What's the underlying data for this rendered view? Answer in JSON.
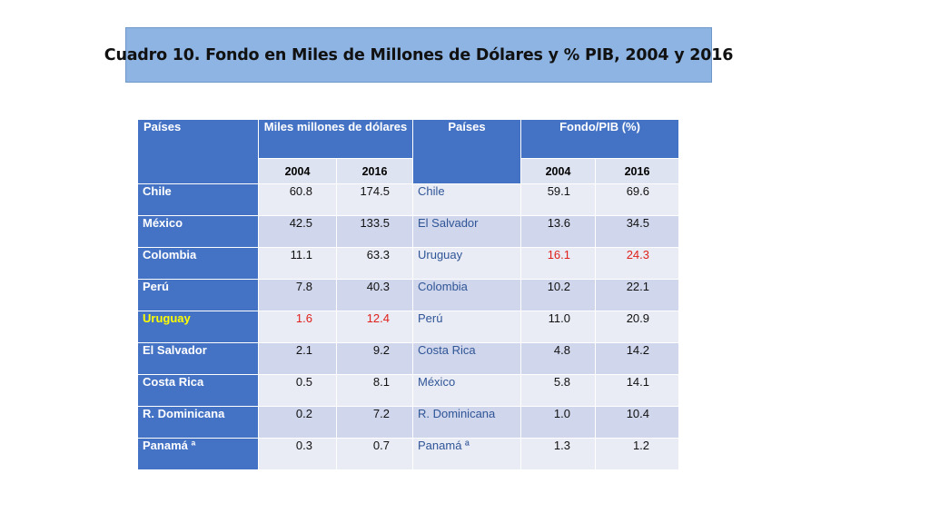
{
  "title": "Cuadro 10. Fondo en Miles de Millones de Dólares y % PIB, 2004 y 2016",
  "table": {
    "headers": {
      "countries_left": "Países",
      "fund_amount": "Miles millones de dólares",
      "countries_right": "Países",
      "fund_gdp": "Fondo/PIB (%)",
      "year_a": "2004",
      "year_b": "2016"
    },
    "rows": [
      {
        "country": "Chile",
        "v2004": "60.8",
        "v2016": "174.5",
        "country2": "Chile",
        "p2004": "59.1",
        "p2016": "69.6"
      },
      {
        "country": "México",
        "v2004": "42.5",
        "v2016": "133.5",
        "country2": "El Salvador",
        "p2004": "13.6",
        "p2016": "34.5"
      },
      {
        "country": "Colombia",
        "v2004": "11.1",
        "v2016": "63.3",
        "country2": "Uruguay",
        "p2004": "16.1",
        "p2016": "24.3"
      },
      {
        "country": "Perú",
        "v2004": "7.8",
        "v2016": "40.3",
        "country2": "Colombia",
        "p2004": "10.2",
        "p2016": "22.1"
      },
      {
        "country": "Uruguay",
        "v2004": "1.6",
        "v2016": "12.4",
        "country2": "Perú",
        "p2004": "11.0",
        "p2016": "20.9"
      },
      {
        "country": "El Salvador",
        "v2004": "2.1",
        "v2016": "9.2",
        "country2": "Costa Rica",
        "p2004": "4.8",
        "p2016": "14.2"
      },
      {
        "country": "Costa Rica",
        "v2004": "0.5",
        "v2016": "8.1",
        "country2": "México",
        "p2004": "5.8",
        "p2016": "14.1"
      },
      {
        "country": "R. Dominicana",
        "v2004": "0.2",
        "v2016": "7.2",
        "country2": "R. Dominicana",
        "p2004": "1.0",
        "p2016": "10.4"
      },
      {
        "country": "Panamá ª",
        "v2004": "0.3",
        "v2016": "0.7",
        "country2": "Panamá ª",
        "p2004": "1.3",
        "p2016": "1.2"
      }
    ]
  },
  "colors": {
    "title_bg": "#8eb4e3",
    "header_bg": "#4472c4",
    "row_light": "#e9ecf5",
    "row_dark": "#d0d6eb",
    "highlight_red": "#e0201a",
    "highlight_yellow": "#ffff00",
    "country_text_blue": "#2f5597"
  }
}
